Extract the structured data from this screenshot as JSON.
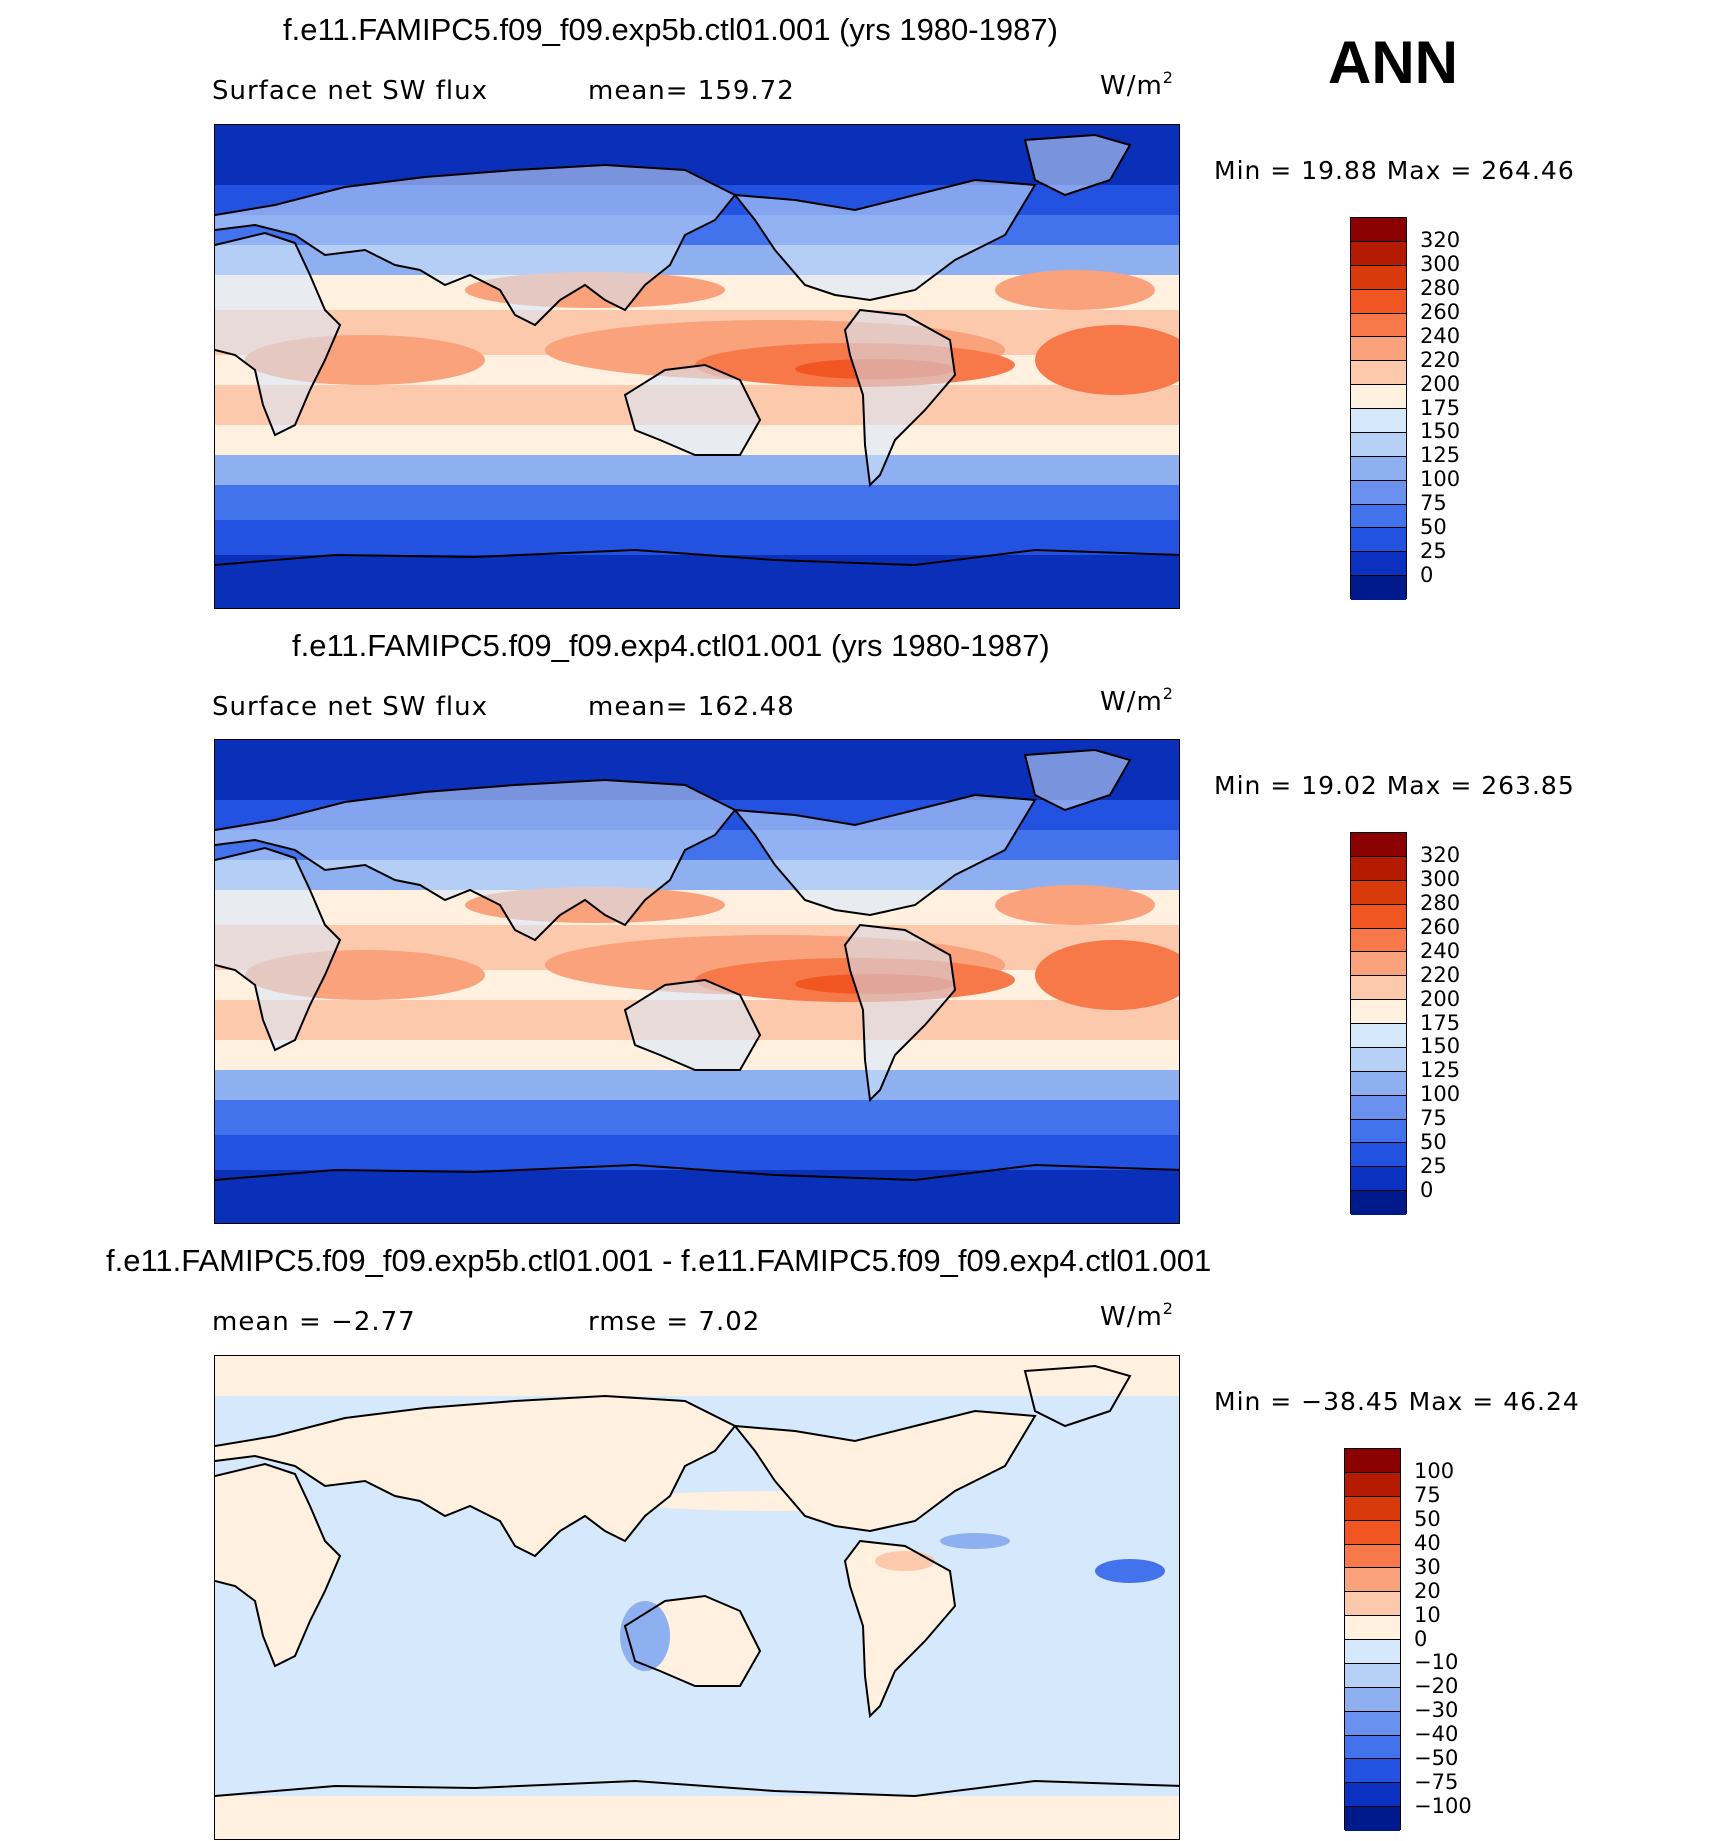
{
  "season": "ANN",
  "panels": [
    {
      "title": "f.e11.FAMIPC5.f09_f09.exp5b.ctl01.001 (yrs 1980-1987)",
      "left_label": "Surface net SW flux",
      "stat1": "mean=  159.72",
      "stat2": "",
      "units_base": "W/m",
      "units_exp": "2",
      "minmax": "Min =   19.88  Max  =  264.46",
      "colorbar_labels": [
        "320",
        "300",
        "280",
        "260",
        "240",
        "220",
        "200",
        "175",
        "150",
        "125",
        "100",
        "75",
        "50",
        "25",
        "0"
      ],
      "colors": [
        "#8b0000",
        "#b51b00",
        "#d83a0c",
        "#f05522",
        "#f7794a",
        "#f9a27c",
        "#fdc9ad",
        "#fff0e0",
        "#d6e8fb",
        "#b7d0f6",
        "#8eb0f0",
        "#6a91ee",
        "#4272ec",
        "#2352e0",
        "#0a31c0",
        "#001a8c"
      ]
    },
    {
      "title": "f.e11.FAMIPC5.f09_f09.exp4.ctl01.001 (yrs 1980-1987)",
      "left_label": "Surface net SW flux",
      "stat1": "mean=  162.48",
      "stat2": "",
      "units_base": "W/m",
      "units_exp": "2",
      "minmax": "Min =   19.02  Max  =  263.85",
      "colorbar_labels": [
        "320",
        "300",
        "280",
        "260",
        "240",
        "220",
        "200",
        "175",
        "150",
        "125",
        "100",
        "75",
        "50",
        "25",
        "0"
      ],
      "colors": [
        "#8b0000",
        "#b51b00",
        "#d83a0c",
        "#f05522",
        "#f7794a",
        "#f9a27c",
        "#fdc9ad",
        "#fff0e0",
        "#d6e8fb",
        "#b7d0f6",
        "#8eb0f0",
        "#6a91ee",
        "#4272ec",
        "#2352e0",
        "#0a31c0",
        "#001a8c"
      ]
    },
    {
      "title": "f.e11.FAMIPC5.f09_f09.exp5b.ctl01.001 - f.e11.FAMIPC5.f09_f09.exp4.ctl01.001",
      "left_label": "mean =   −2.77",
      "stat1": "rmse =    7.02",
      "stat2": "",
      "units_base": "W/m",
      "units_exp": "2",
      "minmax": "Min = −38.45  Max =   46.24",
      "colorbar_labels": [
        "100",
        "75",
        "50",
        "40",
        "30",
        "20",
        "10",
        "0",
        "−10",
        "−20",
        "−30",
        "−40",
        "−50",
        "−75",
        "−100"
      ],
      "colors": [
        "#8b0000",
        "#b51b00",
        "#d83a0c",
        "#f05522",
        "#f7794a",
        "#f9a27c",
        "#fdc9ad",
        "#fff0e0",
        "#d6e8fb",
        "#b7d0f6",
        "#8eb0f0",
        "#6a91ee",
        "#4272ec",
        "#2352e0",
        "#0a31c0",
        "#001a8c"
      ]
    }
  ],
  "map_colors": {
    "deep_blue": "#0a2fb8",
    "blue": "#2352e0",
    "mid_blue": "#4272ec",
    "light_blue": "#8eb0f0",
    "pale_blue": "#d6e8fb",
    "cream": "#fff0e0",
    "peach": "#fdc9ad",
    "salmon": "#f9a27c",
    "orange": "#f7794a",
    "deep_orange": "#f05522"
  }
}
